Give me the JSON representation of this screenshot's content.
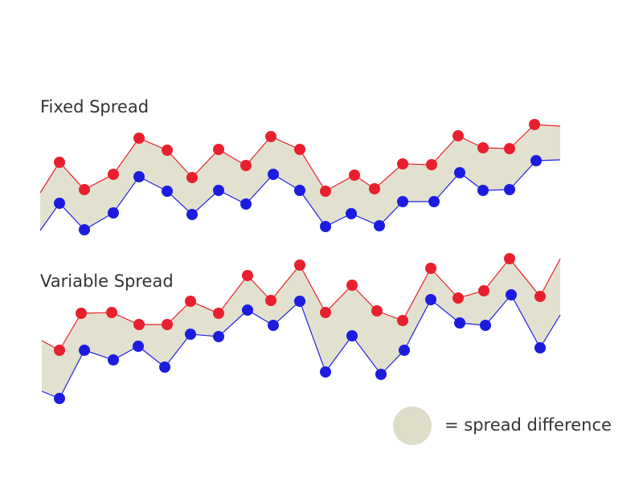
{
  "panels": [
    {
      "title": "Fixed Spread"
    },
    {
      "title": "Variable Spread"
    }
  ],
  "legend": {
    "label": "= spread difference"
  }
}
